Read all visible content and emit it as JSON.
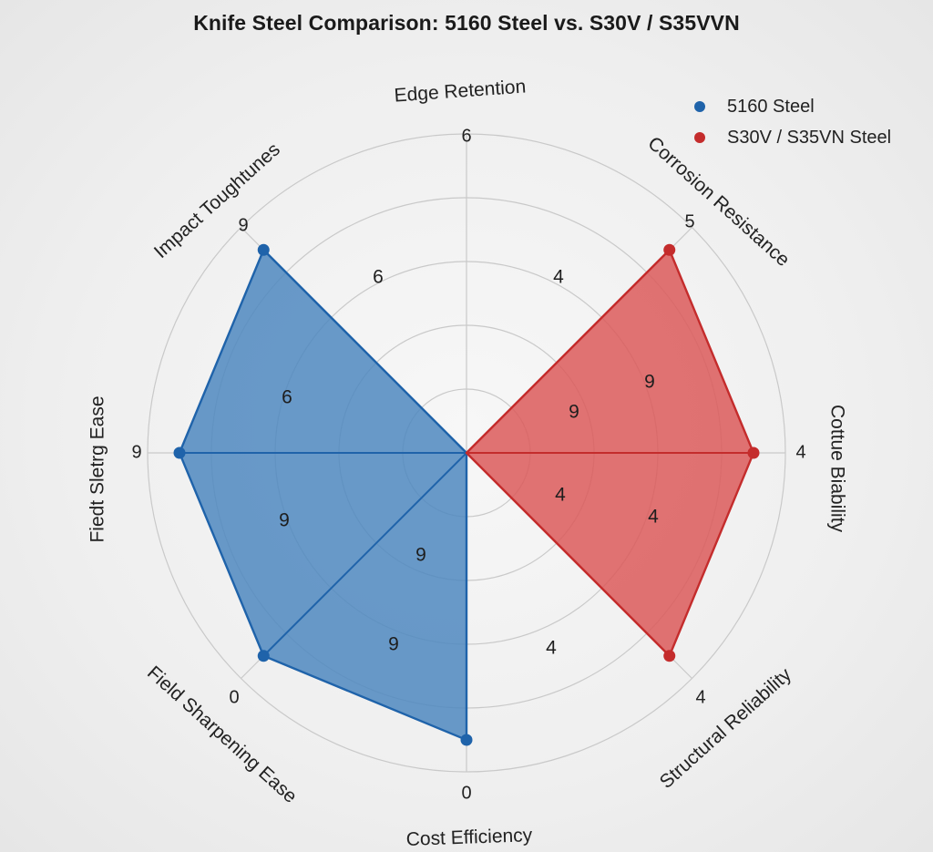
{
  "chart_data": {
    "type": "radar",
    "title": "Knife Steel Comparison: 5160 Steel vs. S30V / S35VVN",
    "axes": [
      "Edge Retention",
      "Corrosion Resistance",
      "Cottue Biability",
      "Structural Reliability",
      "Cost Efficiency",
      "Field Sharpening Ease",
      "Fiedt Sletrg Ease",
      "Impact Toughtunes"
    ],
    "axis_tick_labels": [
      "6",
      "5",
      "4",
      "4",
      "0",
      "0",
      "9",
      "9"
    ],
    "r_range": [
      0,
      10
    ],
    "ring_levels": [
      2,
      4,
      6,
      8,
      10
    ],
    "series": [
      {
        "name": "5160 Steel",
        "color": "#1f63aa",
        "fill": "#4f88c0",
        "values": [
          0,
          0,
          0,
          0,
          9,
          9,
          9,
          9
        ]
      },
      {
        "name": "S30V / S35VN Steel",
        "color": "#c42c2c",
        "fill": "#dc5a5a",
        "values": [
          0,
          9,
          9,
          9,
          0,
          0,
          0,
          0
        ]
      }
    ],
    "sector_labels": [
      {
        "text": "4",
        "series": "S30V / S35VN Steel"
      },
      {
        "text": "9",
        "series": "S30V / S35VN Steel"
      },
      {
        "text": "9",
        "series": "S30V / S35VN Steel"
      },
      {
        "text": "4",
        "series": "S30V / S35VN Steel"
      },
      {
        "text": "4",
        "series": "S30V / S35VN Steel"
      },
      {
        "text": "4",
        "series": "S30V / S35VN Steel"
      },
      {
        "text": "9",
        "series": "5160 Steel"
      },
      {
        "text": "9",
        "series": "5160 Steel"
      },
      {
        "text": "9",
        "series": "5160 Steel"
      },
      {
        "text": "6",
        "series": "5160 Steel"
      },
      {
        "text": "6",
        "series": "5160 Steel"
      }
    ],
    "legend_placement": "top-right",
    "grid": true
  }
}
